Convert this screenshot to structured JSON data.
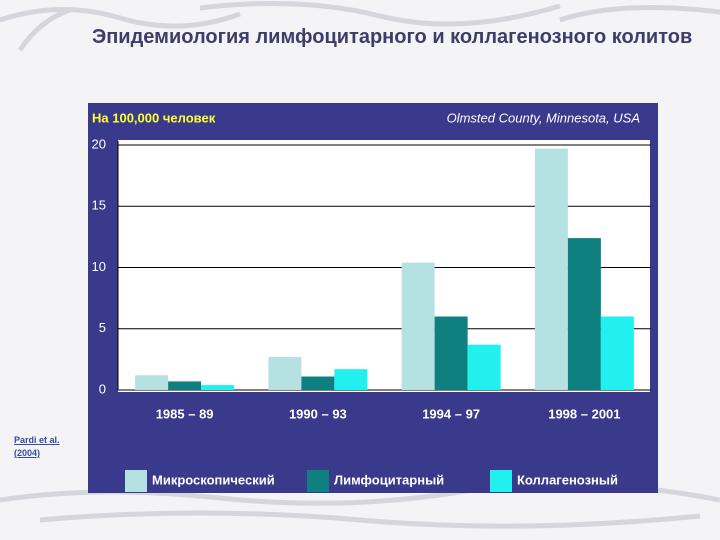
{
  "chart_data": {
    "type": "bar",
    "title": "Эпидемиология лимфоцитарного и коллагенозного колитов",
    "y_label": "На 100,000 человек",
    "annotation": "Olmsted County, Minnesota, USA",
    "source": "Pardi et al. (2004)",
    "categories": [
      "1985 – 89",
      "1990 – 93",
      "1994 – 97",
      "1998 – 2001"
    ],
    "series": [
      {
        "name": "Микроскопический",
        "color": "#b6e1e3",
        "values": [
          1.2,
          2.7,
          10.4,
          19.7
        ]
      },
      {
        "name": "Лимфоцитарный",
        "color": "#0e8080",
        "values": [
          0.7,
          1.1,
          6.0,
          12.4
        ]
      },
      {
        "name": "Коллагенозный",
        "color": "#22f0ee",
        "values": [
          0.4,
          1.7,
          3.7,
          6.0
        ]
      }
    ],
    "ylim": [
      0,
      20
    ],
    "yticks": [
      0,
      5,
      10,
      15,
      20
    ],
    "grid": true
  }
}
